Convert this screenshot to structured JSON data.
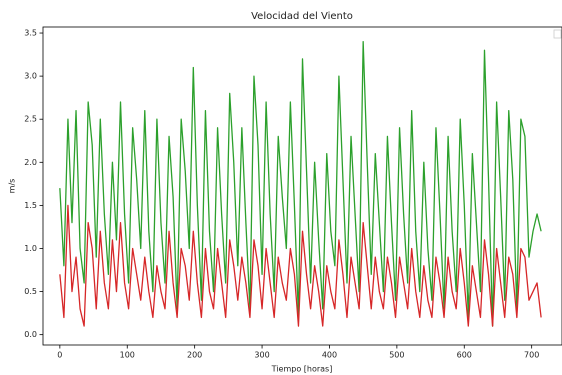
{
  "chart_data": {
    "type": "line",
    "title": "Velocidad del Viento",
    "x_label": "Tiempo [horas]",
    "y_label": "m/s",
    "x": [
      0,
      6,
      12,
      18,
      24,
      30,
      36,
      42,
      48,
      54,
      60,
      66,
      72,
      78,
      84,
      90,
      96,
      102,
      108,
      114,
      120,
      126,
      132,
      138,
      144,
      150,
      156,
      162,
      168,
      174,
      180,
      186,
      192,
      198,
      204,
      210,
      216,
      222,
      228,
      234,
      240,
      246,
      252,
      258,
      264,
      270,
      276,
      282,
      288,
      294,
      300,
      306,
      312,
      318,
      324,
      330,
      336,
      342,
      348,
      354,
      360,
      366,
      372,
      378,
      384,
      390,
      396,
      402,
      408,
      414,
      420,
      426,
      432,
      438,
      444,
      450,
      456,
      462,
      468,
      474,
      480,
      486,
      492,
      498,
      504,
      510,
      516,
      522,
      528,
      534,
      540,
      546,
      552,
      558,
      564,
      570,
      576,
      582,
      588,
      594,
      600,
      606,
      612,
      618,
      624,
      630,
      636,
      642,
      648,
      654,
      660,
      666,
      672,
      678,
      684,
      690,
      696,
      702,
      708,
      714
    ],
    "series": [
      {
        "color": "#2ca02c",
        "values": [
          1.7,
          0.8,
          2.5,
          1.3,
          2.6,
          1.0,
          0.6,
          2.7,
          2.2,
          0.9,
          2.5,
          1.4,
          0.7,
          2.0,
          1.1,
          2.7,
          1.4,
          0.6,
          2.4,
          1.8,
          1.0,
          2.6,
          1.2,
          0.5,
          2.5,
          1.3,
          0.6,
          2.3,
          1.6,
          0.3,
          2.5,
          1.9,
          1.0,
          3.1,
          1.5,
          0.4,
          2.6,
          1.2,
          0.5,
          2.4,
          1.4,
          0.6,
          2.8,
          2.0,
          0.8,
          2.4,
          1.3,
          0.3,
          3.0,
          2.2,
          0.7,
          2.7,
          1.4,
          0.5,
          2.3,
          1.6,
          1.0,
          2.7,
          1.5,
          0.2,
          3.2,
          1.9,
          0.6,
          2.0,
          1.1,
          0.3,
          2.1,
          1.2,
          0.8,
          3.0,
          1.8,
          0.6,
          2.3,
          1.4,
          0.5,
          3.4,
          2.0,
          0.7,
          2.1,
          1.3,
          0.5,
          2.3,
          1.3,
          0.4,
          2.4,
          1.4,
          0.6,
          2.6,
          1.2,
          0.5,
          2.0,
          1.0,
          0.4,
          2.4,
          1.4,
          0.3,
          2.3,
          1.2,
          0.5,
          2.5,
          1.5,
          0.2,
          2.1,
          1.3,
          0.5,
          3.3,
          1.8,
          0.1,
          2.7,
          1.6,
          0.4,
          2.6,
          1.8,
          0.3,
          2.5,
          2.3,
          0.9,
          1.2,
          1.4,
          1.2
        ]
      },
      {
        "color": "#d62728",
        "values": [
          0.7,
          0.2,
          1.5,
          0.5,
          0.9,
          0.3,
          0.1,
          1.3,
          1.0,
          0.3,
          1.2,
          0.6,
          0.3,
          1.1,
          0.5,
          1.3,
          0.6,
          0.3,
          1.0,
          0.7,
          0.4,
          0.9,
          0.5,
          0.2,
          0.8,
          0.5,
          0.3,
          1.2,
          0.6,
          0.2,
          1.0,
          0.8,
          0.4,
          1.2,
          0.6,
          0.2,
          1.0,
          0.5,
          0.3,
          1.0,
          0.6,
          0.2,
          1.1,
          0.8,
          0.4,
          0.9,
          0.6,
          0.2,
          1.1,
          0.8,
          0.3,
          1.0,
          0.6,
          0.2,
          0.9,
          0.6,
          0.4,
          1.0,
          0.7,
          0.1,
          1.2,
          0.7,
          0.3,
          0.8,
          0.5,
          0.1,
          0.8,
          0.5,
          0.3,
          1.1,
          0.7,
          0.2,
          0.9,
          0.6,
          0.3,
          1.3,
          0.8,
          0.3,
          0.9,
          0.5,
          0.3,
          0.9,
          0.6,
          0.2,
          0.9,
          0.6,
          0.3,
          1.0,
          0.5,
          0.2,
          0.8,
          0.4,
          0.2,
          0.9,
          0.6,
          0.2,
          0.9,
          0.5,
          0.3,
          1.0,
          0.6,
          0.1,
          0.8,
          0.5,
          0.2,
          1.1,
          0.7,
          0.1,
          1.0,
          0.6,
          0.2,
          0.9,
          0.7,
          0.2,
          1.0,
          0.9,
          0.4,
          0.5,
          0.6,
          0.2
        ]
      }
    ],
    "xlim": [
      -25,
      745
    ],
    "xticks": [
      0,
      100,
      200,
      300,
      400,
      500,
      600,
      700
    ],
    "ylim": [
      -0.12,
      3.57
    ],
    "yticks": [
      {
        "value": 0,
        "label": "0.0"
      },
      0.5,
      {
        "value": 1,
        "label": "1.0"
      },
      1.5,
      {
        "value": 2,
        "label": "2.0"
      },
      2.5,
      {
        "value": 3,
        "label": "3.0"
      },
      3.5
    ]
  }
}
